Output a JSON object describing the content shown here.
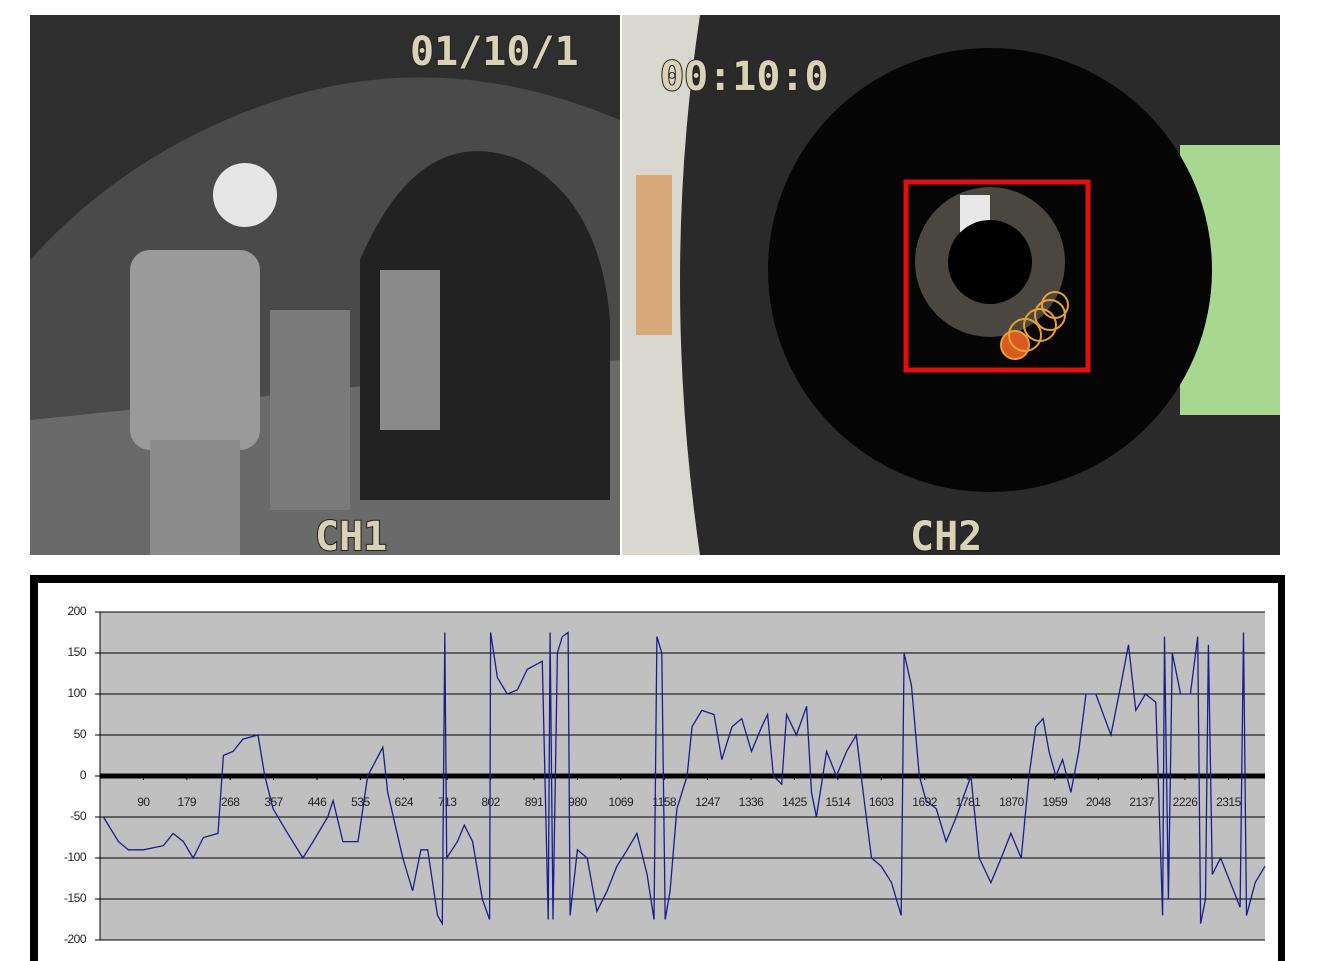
{
  "camera_views": [
    {
      "timestamp": "01/10/1",
      "channel": "CH1"
    },
    {
      "timestamp": "00:10:0",
      "channel": "CH2"
    }
  ],
  "chart_data": {
    "type": "line",
    "color": "#1c1c8c",
    "grid": true,
    "xlim": [
      1,
      2390
    ],
    "ylim": [
      -200,
      200
    ],
    "yticks": [
      -200,
      -150,
      -100,
      -50,
      0,
      50,
      100,
      150,
      200
    ],
    "xticks": [
      90,
      179,
      268,
      357,
      446,
      535,
      624,
      713,
      802,
      891,
      980,
      1069,
      1158,
      1247,
      1336,
      1425,
      1514,
      1603,
      1692,
      1781,
      1870,
      1959,
      2048,
      2137,
      2226,
      2315
    ],
    "x": [
      8,
      39,
      59,
      90,
      131,
      151,
      172,
      192,
      213,
      243,
      254,
      274,
      294,
      325,
      339,
      356,
      386,
      417,
      438,
      468,
      479,
      499,
      530,
      550,
      581,
      591,
      622,
      642,
      659,
      673,
      693,
      703,
      708,
      712,
      734,
      748,
      765,
      785,
      800,
      802,
      816,
      836,
      857,
      877,
      908,
      920,
      924,
      930,
      939,
      949,
      961,
      965,
      980,
      1000,
      1020,
      1041,
      1061,
      1082,
      1102,
      1123,
      1137,
      1143,
      1153,
      1160,
      1170,
      1184,
      1205,
      1215,
      1235,
      1260,
      1276,
      1297,
      1317,
      1337,
      1358,
      1370,
      1382,
      1399,
      1409,
      1429,
      1450,
      1460,
      1470,
      1491,
      1511,
      1532,
      1552,
      1566,
      1583,
      1603,
      1624,
      1644,
      1650,
      1665,
      1681,
      1695,
      1716,
      1736,
      1757,
      1787,
      1804,
      1828,
      1849,
      1869,
      1890,
      1906,
      1920,
      1935,
      1947,
      1961,
      1975,
      1992,
      2008,
      2023,
      2043,
      2074,
      2094,
      2110,
      2125,
      2145,
      2166,
      2180,
      2184,
      2192,
      2200,
      2217,
      2237,
      2252,
      2258,
      2268,
      2274,
      2282,
      2299,
      2319,
      2339,
      2346,
      2352,
      2370,
      2390
    ],
    "values": [
      -50,
      -80,
      -90,
      -90,
      -85,
      -70,
      -80,
      -100,
      -75,
      -70,
      25,
      30,
      45,
      50,
      0,
      -40,
      -70,
      -100,
      -80,
      -50,
      -30,
      -80,
      -80,
      0,
      35,
      -20,
      -100,
      -140,
      -90,
      -90,
      -170,
      -180,
      175,
      -100,
      -80,
      -60,
      -80,
      -150,
      -175,
      175,
      120,
      100,
      105,
      130,
      140,
      -175,
      175,
      -175,
      150,
      170,
      175,
      -170,
      -90,
      -100,
      -165,
      -140,
      -110,
      -90,
      -70,
      -120,
      -175,
      170,
      150,
      -175,
      -140,
      -40,
      0,
      60,
      80,
      75,
      20,
      60,
      70,
      30,
      60,
      75,
      0,
      -10,
      75,
      50,
      85,
      -20,
      -50,
      30,
      0,
      30,
      50,
      -20,
      -100,
      -110,
      -130,
      -170,
      150,
      110,
      0,
      -30,
      -40,
      -80,
      -50,
      0,
      -100,
      -130,
      -100,
      -70,
      -100,
      0,
      60,
      70,
      30,
      0,
      20,
      -20,
      30,
      100,
      100,
      50,
      110,
      160,
      80,
      100,
      90,
      -170,
      170,
      -150,
      150,
      100,
      100,
      170,
      -180,
      -150,
      160,
      -120,
      -100,
      -130,
      -160,
      175,
      -170,
      -130,
      -110
    ]
  }
}
